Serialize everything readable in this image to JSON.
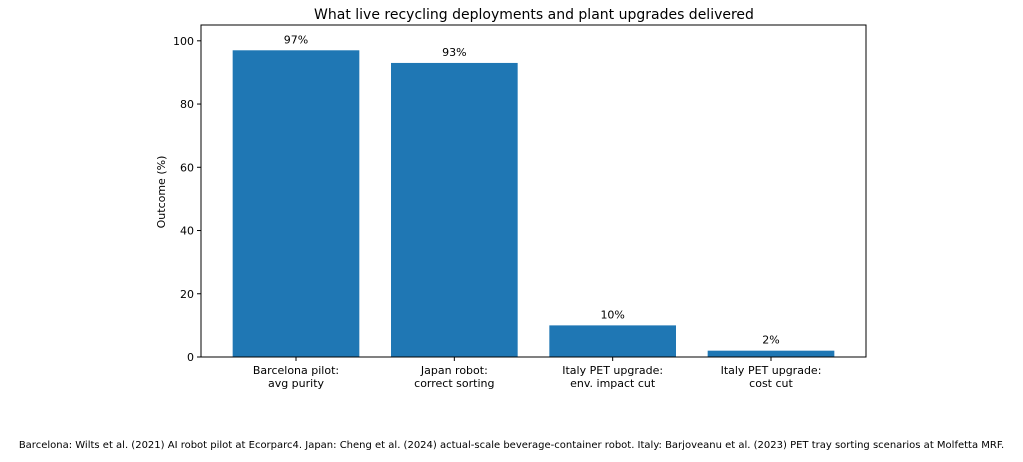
{
  "chart_data": {
    "type": "bar",
    "title": "What live recycling deployments and plant upgrades delivered",
    "ylabel": "Outcome (%)",
    "xlabel": "",
    "ylim": [
      0,
      105
    ],
    "yticks": [
      0,
      20,
      40,
      60,
      80,
      100
    ],
    "grid": false,
    "bar_color": "#1f77b4",
    "categories": [
      [
        "Barcelona pilot:",
        "avg purity"
      ],
      [
        "Japan robot:",
        "correct sorting"
      ],
      [
        "Italy PET upgrade:",
        "env. impact cut"
      ],
      [
        "Italy PET upgrade:",
        "cost cut"
      ]
    ],
    "values": [
      97,
      93,
      10,
      2
    ],
    "value_labels": [
      "97%",
      "93%",
      "10%",
      "2%"
    ]
  },
  "caption": "Barcelona: Wilts et al. (2021) AI robot pilot at Ecorparc4. Japan: Cheng et al. (2024) actual-scale beverage-container robot. Italy: Barjoveanu et al. (2023) PET tray sorting scenarios at Molfetta MRF."
}
